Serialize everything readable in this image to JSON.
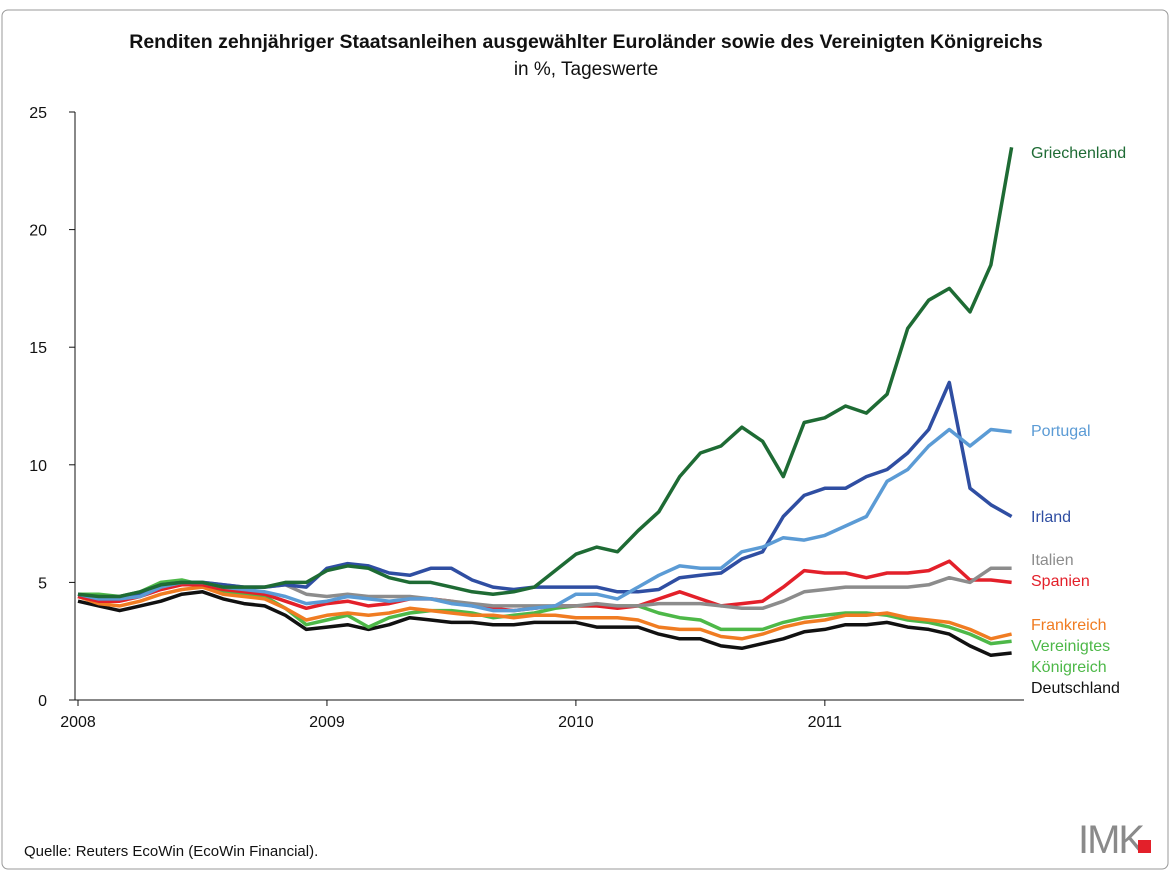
{
  "chart_data": {
    "type": "line",
    "title": "Renditen zehnjähriger Staatsanleihen ausgewählter Euroländer sowie des Vereinigten Königreichs",
    "subtitle": "in %, Tageswerte",
    "source": "Quelle: Reuters EcoWin (EcoWin Financial).",
    "logo": "IMK",
    "x": [
      2008,
      2008.083,
      2008.167,
      2008.25,
      2008.333,
      2008.417,
      2008.5,
      2008.583,
      2008.667,
      2008.75,
      2008.833,
      2008.917,
      2009,
      2009.083,
      2009.167,
      2009.25,
      2009.333,
      2009.417,
      2009.5,
      2009.583,
      2009.667,
      2009.75,
      2009.833,
      2009.917,
      2010,
      2010.083,
      2010.167,
      2010.25,
      2010.333,
      2010.417,
      2010.5,
      2010.583,
      2010.667,
      2010.75,
      2010.833,
      2010.917,
      2011,
      2011.083,
      2011.167,
      2011.25,
      2011.333,
      2011.417,
      2011.5,
      2011.583,
      2011.667,
      2011.75
    ],
    "xlim": [
      2008,
      2011.8
    ],
    "xticks": [
      2008,
      2009,
      2010,
      2011
    ],
    "ylim": [
      0,
      25
    ],
    "yticks": [
      0,
      5,
      10,
      15,
      20,
      25
    ],
    "series": [
      {
        "name": "Griechenland",
        "color": "#1e6b34",
        "values": [
          4.5,
          4.4,
          4.4,
          4.6,
          4.9,
          5.0,
          5.0,
          4.8,
          4.8,
          4.8,
          5.0,
          5.0,
          5.5,
          5.7,
          5.6,
          5.2,
          5.0,
          5.0,
          4.8,
          4.6,
          4.5,
          4.6,
          4.8,
          5.5,
          6.2,
          6.5,
          6.3,
          7.2,
          8.0,
          9.5,
          10.5,
          10.8,
          11.6,
          11.0,
          9.5,
          11.8,
          12.0,
          12.5,
          12.2,
          13.0,
          15.8,
          17.0,
          17.5,
          16.5,
          18.5,
          23.5
        ]
      },
      {
        "name": "Portugal",
        "color": "#5b9bd5",
        "values": [
          4.5,
          4.3,
          4.3,
          4.4,
          4.8,
          5.0,
          5.0,
          4.8,
          4.7,
          4.6,
          4.4,
          4.1,
          4.2,
          4.4,
          4.3,
          4.2,
          4.3,
          4.3,
          4.1,
          4.0,
          3.8,
          3.8,
          3.9,
          4.0,
          4.5,
          4.5,
          4.3,
          4.8,
          5.3,
          5.7,
          5.6,
          5.6,
          6.3,
          6.5,
          6.9,
          6.8,
          7.0,
          7.4,
          7.8,
          9.3,
          9.8,
          10.8,
          11.5,
          10.8,
          11.5,
          11.4
        ]
      },
      {
        "name": "Irland",
        "color": "#2f4ea2",
        "values": [
          4.5,
          4.3,
          4.3,
          4.5,
          4.9,
          5.0,
          5.0,
          4.9,
          4.8,
          4.8,
          4.9,
          4.8,
          5.6,
          5.8,
          5.7,
          5.4,
          5.3,
          5.6,
          5.6,
          5.1,
          4.8,
          4.7,
          4.8,
          4.8,
          4.8,
          4.8,
          4.6,
          4.6,
          4.7,
          5.2,
          5.3,
          5.4,
          6.0,
          6.3,
          7.8,
          8.7,
          9.0,
          9.0,
          9.5,
          9.8,
          10.5,
          11.5,
          13.5,
          9.0,
          8.3,
          7.8
        ]
      },
      {
        "name": "Italien",
        "color": "#8c8c8c",
        "values": [
          4.5,
          4.3,
          4.4,
          4.5,
          4.8,
          5.0,
          5.0,
          4.9,
          4.8,
          4.8,
          4.9,
          4.5,
          4.4,
          4.5,
          4.4,
          4.4,
          4.4,
          4.3,
          4.2,
          4.1,
          4.0,
          4.0,
          4.0,
          4.0,
          4.0,
          4.1,
          4.0,
          4.0,
          4.1,
          4.1,
          4.1,
          4.0,
          3.9,
          3.9,
          4.2,
          4.6,
          4.7,
          4.8,
          4.8,
          4.8,
          4.8,
          4.9,
          5.2,
          5.0,
          5.6,
          5.6
        ]
      },
      {
        "name": "Spanien",
        "color": "#e3202a",
        "values": [
          4.4,
          4.2,
          4.2,
          4.4,
          4.7,
          4.9,
          4.9,
          4.7,
          4.6,
          4.5,
          4.2,
          3.9,
          4.1,
          4.2,
          4.0,
          4.1,
          4.3,
          4.3,
          4.2,
          4.0,
          3.9,
          3.8,
          3.9,
          4.0,
          4.0,
          4.0,
          3.9,
          4.0,
          4.3,
          4.6,
          4.3,
          4.0,
          4.1,
          4.2,
          4.8,
          5.5,
          5.4,
          5.4,
          5.2,
          5.4,
          5.4,
          5.5,
          5.9,
          5.1,
          5.1,
          5.0
        ]
      },
      {
        "name": "Frankreich",
        "color": "#f07c22",
        "values": [
          4.4,
          4.1,
          4.0,
          4.2,
          4.5,
          4.7,
          4.8,
          4.5,
          4.4,
          4.3,
          3.9,
          3.4,
          3.6,
          3.7,
          3.6,
          3.7,
          3.9,
          3.8,
          3.7,
          3.6,
          3.6,
          3.5,
          3.6,
          3.6,
          3.5,
          3.5,
          3.5,
          3.4,
          3.1,
          3.0,
          3.0,
          2.7,
          2.6,
          2.8,
          3.1,
          3.3,
          3.4,
          3.6,
          3.6,
          3.7,
          3.5,
          3.4,
          3.3,
          3.0,
          2.6,
          2.8
        ]
      },
      {
        "name": "Vereinigtes Königreich",
        "color": "#4db848",
        "values": [
          4.5,
          4.5,
          4.4,
          4.6,
          5.0,
          5.1,
          4.9,
          4.6,
          4.5,
          4.4,
          3.9,
          3.2,
          3.4,
          3.6,
          3.1,
          3.5,
          3.7,
          3.8,
          3.8,
          3.7,
          3.5,
          3.6,
          3.7,
          3.9,
          4.0,
          4.0,
          4.0,
          4.0,
          3.7,
          3.5,
          3.4,
          3.0,
          3.0,
          3.0,
          3.3,
          3.5,
          3.6,
          3.7,
          3.7,
          3.6,
          3.4,
          3.3,
          3.1,
          2.8,
          2.4,
          2.5
        ]
      },
      {
        "name": "Deutschland",
        "color": "#111111",
        "values": [
          4.2,
          4.0,
          3.8,
          4.0,
          4.2,
          4.5,
          4.6,
          4.3,
          4.1,
          4.0,
          3.6,
          3.0,
          3.1,
          3.2,
          3.0,
          3.2,
          3.5,
          3.4,
          3.3,
          3.3,
          3.2,
          3.2,
          3.3,
          3.3,
          3.3,
          3.1,
          3.1,
          3.1,
          2.8,
          2.6,
          2.6,
          2.3,
          2.2,
          2.4,
          2.6,
          2.9,
          3.0,
          3.2,
          3.2,
          3.3,
          3.1,
          3.0,
          2.8,
          2.3,
          1.9,
          2.0
        ]
      }
    ]
  }
}
